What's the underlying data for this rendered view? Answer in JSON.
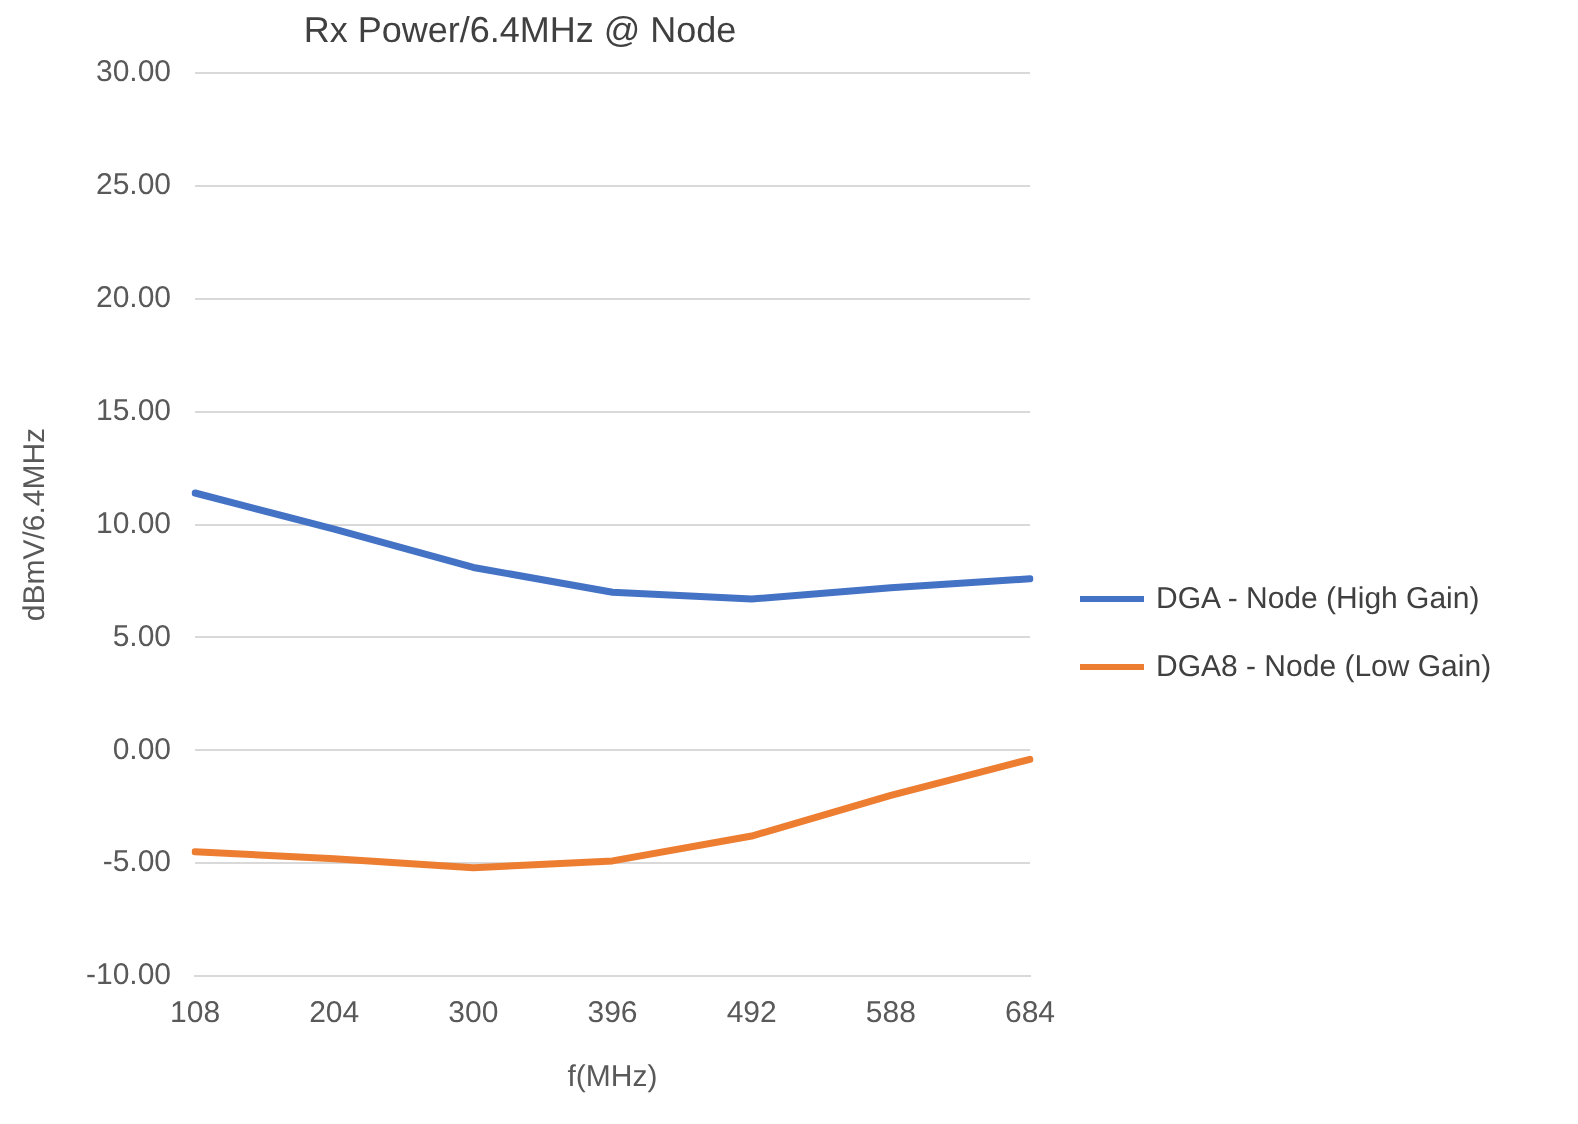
{
  "chart_data": {
    "type": "line",
    "title": "Rx Power/6.4MHz @ Node",
    "xlabel": "f(MHz)",
    "ylabel": "dBmV/6.4MHz",
    "categories": [
      "108",
      "204",
      "300",
      "396",
      "492",
      "588",
      "684"
    ],
    "series": [
      {
        "name": "DGA - Node (High Gain)",
        "color": "#4472c4",
        "values": [
          11.4,
          9.8,
          8.1,
          7.0,
          6.7,
          7.2,
          7.6
        ]
      },
      {
        "name": "DGA8 - Node (Low Gain)",
        "color": "#ed7d31",
        "values": [
          -4.5,
          -4.8,
          -5.2,
          -4.9,
          -3.8,
          -2.0,
          -0.4
        ]
      }
    ],
    "ylim": [
      -10,
      30
    ],
    "yticks": [
      {
        "value": -10,
        "label": "-10.00"
      },
      {
        "value": -5,
        "label": "-5.00"
      },
      {
        "value": 0,
        "label": "0.00"
      },
      {
        "value": 5,
        "label": "5.00"
      },
      {
        "value": 10,
        "label": "10.00"
      },
      {
        "value": 15,
        "label": "15.00"
      },
      {
        "value": 20,
        "label": "20.00"
      },
      {
        "value": 25,
        "label": "25.00"
      },
      {
        "value": 30,
        "label": "30.00"
      }
    ],
    "grid": "y",
    "legend": "right",
    "marker": "none",
    "line_style": "solid"
  }
}
